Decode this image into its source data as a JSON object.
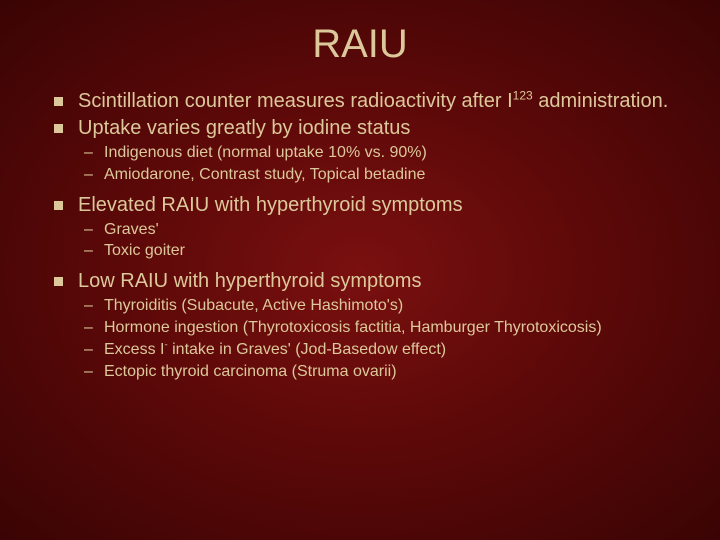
{
  "title": "RAIU",
  "background_colors": {
    "center": "#7a1010",
    "mid": "#5a0808",
    "edge": "#3a0404"
  },
  "text_color": "#dcc89a",
  "title_fontsize": 40,
  "l1_fontsize": 20,
  "l2_fontsize": 16,
  "bullets": {
    "b1_pre": "Scintillation counter measures radioactivity after I",
    "b1_sup": "123",
    "b1_post": " administration.",
    "b2": "Uptake varies greatly by iodine status",
    "b2_subs": {
      "s1": "Indigenous diet (normal uptake 10% vs. 90%)",
      "s2": "Amiodarone, Contrast study, Topical betadine"
    },
    "b3": "Elevated RAIU with hyperthyroid symptoms",
    "b3_subs": {
      "s1": "Graves'",
      "s2": "Toxic goiter"
    },
    "b4": "Low RAIU with hyperthyroid symptoms",
    "b4_subs": {
      "s1": "Thyroiditis (Subacute, Active Hashimoto's)",
      "s2": "Hormone ingestion (Thyrotoxicosis factitia, Hamburger Thyrotoxicosis)",
      "s3_pre": "Excess I",
      "s3_sup": "-",
      "s3_post": " intake in Graves' (Jod-Basedow effect)",
      "s4": "Ectopic thyroid carcinoma (Struma ovarii)"
    }
  }
}
